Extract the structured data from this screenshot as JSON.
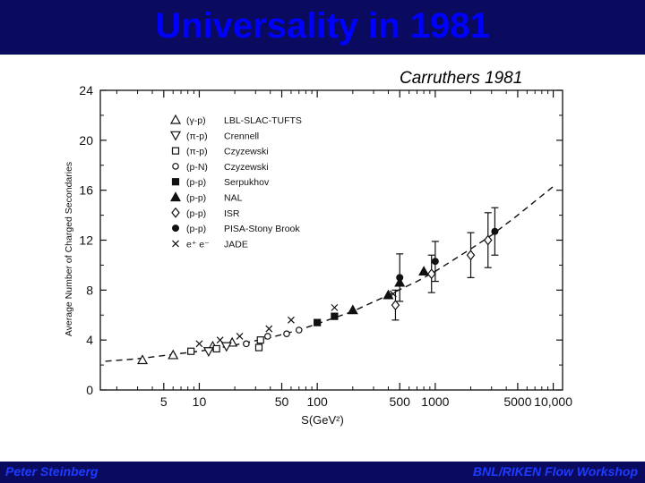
{
  "slide": {
    "title": "Universality in 1981",
    "caption": "Carruthers 1981",
    "footer_left": "Peter Steinberg",
    "footer_right": "BNL/RIKEN Flow Workshop",
    "title_color": "#0000ff",
    "bar_color": "#0a0a5e"
  },
  "chart_data": {
    "type": "scatter",
    "xlabel": "S(GeV²)",
    "ylabel": "Average Number of Charged Secondaries",
    "xscale": "log",
    "xlim": [
      1.45,
      12000
    ],
    "ylim": [
      0,
      24
    ],
    "xticks": [
      {
        "value": 5,
        "label": "5"
      },
      {
        "value": 10,
        "label": "10"
      },
      {
        "value": 50,
        "label": "50"
      },
      {
        "value": 100,
        "label": "100"
      },
      {
        "value": 500,
        "label": "500"
      },
      {
        "value": 1000,
        "label": "1000"
      },
      {
        "value": 5000,
        "label": "5000"
      },
      {
        "value": 10000,
        "label": "10,000"
      }
    ],
    "yticks": [
      0,
      4,
      8,
      12,
      16,
      20,
      24
    ],
    "grid": false,
    "legend_position": "top-left",
    "series": [
      {
        "name": "LBL-SLAC-TUFTS",
        "label": "(γ-p)",
        "marker": "triangle-open",
        "points": [
          [
            3.3,
            2.4
          ],
          [
            6.0,
            2.8
          ],
          [
            13.0,
            3.5
          ],
          [
            19.0,
            3.8
          ]
        ]
      },
      {
        "name": "Crennell",
        "label": "(π-p)",
        "marker": "triangle-down-open",
        "points": [
          [
            12.0,
            3.1
          ],
          [
            17.0,
            3.5
          ]
        ]
      },
      {
        "name": "Czyzewski",
        "label": "(π-p)",
        "marker": "square-open",
        "points": [
          [
            8.5,
            3.1
          ],
          [
            14.0,
            3.3
          ],
          [
            32.0,
            3.4
          ],
          [
            33.0,
            4.0
          ]
        ]
      },
      {
        "name": "Czyzewski",
        "label": "(p-N)",
        "marker": "circle-open",
        "points": [
          [
            25.0,
            3.7
          ],
          [
            38.0,
            4.3
          ],
          [
            55.0,
            4.5
          ],
          [
            70.0,
            4.8
          ]
        ]
      },
      {
        "name": "Serpukhov",
        "label": "(p-p)",
        "marker": "square-filled",
        "points": [
          [
            100.0,
            5.4
          ],
          [
            140.0,
            5.9
          ]
        ]
      },
      {
        "name": "NAL",
        "label": "(p-p)",
        "marker": "triangle-filled",
        "points": [
          [
            200.0,
            6.4
          ],
          [
            400.0,
            7.6
          ],
          [
            500.0,
            8.6
          ],
          [
            800.0,
            9.5
          ]
        ]
      },
      {
        "name": "ISR",
        "label": "(p-p)",
        "marker": "diamond-open",
        "points": [
          [
            460.0,
            6.8,
            1.2
          ],
          [
            930.0,
            9.3,
            1.5
          ],
          [
            2000.0,
            10.8,
            1.8
          ],
          [
            2800.0,
            12.0,
            2.2
          ]
        ]
      },
      {
        "name": "PISA-Stony Brook",
        "label": "(p-p)",
        "marker": "circle-filled",
        "points": [
          [
            500.0,
            9.0,
            1.9
          ],
          [
            1000.0,
            10.3,
            1.6
          ],
          [
            3200.0,
            12.7,
            1.9
          ]
        ]
      },
      {
        "name": "JADE",
        "label": "e⁺ e⁻",
        "marker": "cross",
        "points": [
          [
            10.0,
            3.7
          ],
          [
            15.0,
            4.0
          ],
          [
            22.0,
            4.3
          ],
          [
            39.0,
            4.9
          ],
          [
            60.0,
            5.6
          ],
          [
            140.0,
            6.6
          ],
          [
            440.0,
            7.7
          ]
        ]
      }
    ],
    "fit_curve": {
      "style": "dashed",
      "points": [
        [
          1.6,
          2.3
        ],
        [
          3.0,
          2.5
        ],
        [
          6.0,
          2.85
        ],
        [
          10.0,
          3.1
        ],
        [
          20.0,
          3.6
        ],
        [
          40.0,
          4.2
        ],
        [
          70.0,
          4.8
        ],
        [
          100.0,
          5.3
        ],
        [
          200.0,
          6.3
        ],
        [
          400.0,
          7.6
        ],
        [
          700.0,
          8.7
        ],
        [
          1000.0,
          9.5
        ],
        [
          2000.0,
          11.3
        ],
        [
          3000.0,
          12.4
        ],
        [
          5000.0,
          14.0
        ],
        [
          10000.0,
          16.3
        ]
      ]
    }
  }
}
